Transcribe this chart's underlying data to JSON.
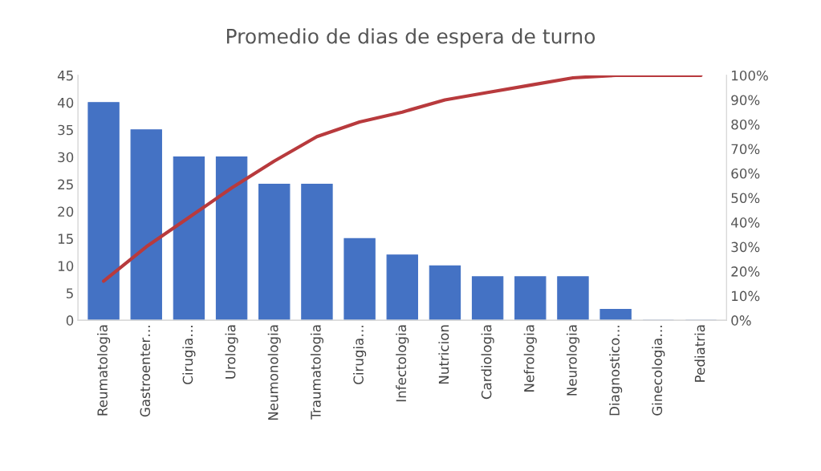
{
  "chart_data": {
    "type": "bar",
    "title": "Promedio de dias de espera de turno",
    "categories": [
      "Reumatologia",
      "Gastroenter…",
      "Cirugia…",
      "Urologia",
      "Neumonologia",
      "Traumatologia",
      "Cirugia…",
      "Infectologia",
      "Nutricion",
      "Cardiologia",
      "Nefrologia",
      "Neurologia",
      "Diagnostico…",
      "Ginecologia…",
      "Pediatria"
    ],
    "series": [
      {
        "color": "#4472c4",
        "values": [
          40,
          35,
          30,
          30,
          25,
          25,
          15,
          12,
          10,
          8,
          8,
          8,
          2,
          0,
          0
        ]
      },
      {
        "type": "line",
        "axis": "y2",
        "color": "#b83a3d",
        "values": [
          16,
          30,
          42,
          54,
          65,
          75,
          81,
          85,
          90,
          93,
          96,
          99,
          100,
          100,
          100
        ]
      }
    ],
    "ylim": [
      0,
      45
    ],
    "yticks": [
      0,
      5,
      10,
      15,
      20,
      25,
      30,
      35,
      40,
      45
    ],
    "y2lim": [
      0,
      100
    ],
    "y2ticks": [
      {
        "value": 0,
        "label": "0%"
      },
      {
        "value": 10,
        "label": "10%"
      },
      {
        "value": 20,
        "label": "20%"
      },
      {
        "value": 30,
        "label": "30%"
      },
      {
        "value": 40,
        "label": "40%"
      },
      {
        "value": 50,
        "label": "50%"
      },
      {
        "value": 60,
        "label": "60%"
      },
      {
        "value": 70,
        "label": "70%"
      },
      {
        "value": 80,
        "label": "80%"
      },
      {
        "value": 90,
        "label": "90%"
      },
      {
        "value": 100,
        "label": "100%"
      }
    ],
    "grid": false,
    "legend": false
  }
}
